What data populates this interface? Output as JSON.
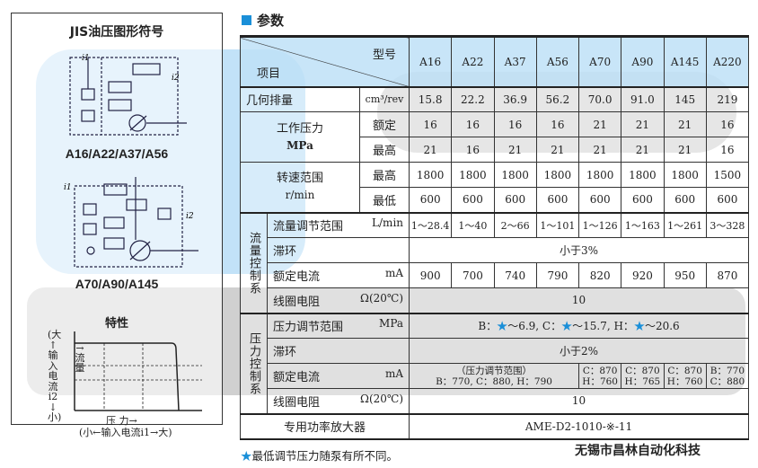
{
  "left_panel": {
    "title": "JIS油压图形符号",
    "diagram1_label": "A16/A22/A37/A56",
    "diagram2_label": "A70/A90/A145",
    "characteristics": {
      "title": "特性",
      "y_axis_label": [
        "(大",
        "↑",
        "输",
        "入",
        "电",
        "流",
        "i2",
        "↓",
        "小)"
      ],
      "flow_label": "↑流量",
      "x_axis_label": "压 力→",
      "x_axis_sub": "(小←输入电流i1→大)"
    },
    "i1": "i1",
    "i2": "i2"
  },
  "section_title": "参数",
  "table": {
    "header_model": "型号",
    "header_item": "项目",
    "models": [
      "A16",
      "A22",
      "A37",
      "A56",
      "A70",
      "A90",
      "A145",
      "A220"
    ],
    "displacement": {
      "label": "几何排量",
      "unit": "cm³/rev",
      "values": [
        "15.8",
        "22.2",
        "36.9",
        "56.2",
        "70.0",
        "91.0",
        "145",
        "219"
      ]
    },
    "working_pressure": {
      "label": "工作压力",
      "unit": "MPa",
      "rated": {
        "label": "额定",
        "values": [
          "16",
          "16",
          "16",
          "16",
          "21",
          "21",
          "21",
          "16"
        ]
      },
      "max": {
        "label": "最高",
        "values": [
          "21",
          "16",
          "21",
          "21",
          "21",
          "21",
          "21",
          "16"
        ]
      }
    },
    "speed_range": {
      "label": "转速范围",
      "unit": "r/min",
      "max": {
        "label": "最高",
        "values": [
          "1800",
          "1800",
          "1800",
          "1800",
          "1800",
          "1800",
          "1800",
          "1500"
        ]
      },
      "min": {
        "label": "最低",
        "values": [
          "600",
          "600",
          "600",
          "600",
          "600",
          "600",
          "600",
          "600"
        ]
      }
    },
    "flow_control": {
      "group": "流量控制系",
      "range": {
        "label": "流量调节范围",
        "unit": "L/min",
        "values": [
          "1～28.4",
          "1～40",
          "2～66",
          "1～101",
          "1～126",
          "1～163",
          "1～261",
          "3～328"
        ]
      },
      "hysteresis": {
        "label": "滞环",
        "value": "小于3%"
      },
      "current": {
        "label": "额定电流",
        "unit": "mA",
        "values": [
          "900",
          "700",
          "740",
          "790",
          "820",
          "920",
          "950",
          "870"
        ]
      },
      "resistance": {
        "label": "线圈电阻",
        "unit": "Ω(20℃)",
        "value": "10"
      }
    },
    "pressure_control": {
      "group": "压力控制系",
      "range": {
        "label": "压力调节范围",
        "unit": "MPa",
        "parts": [
          "B：",
          "～6.9, C：",
          "～15.7, H：",
          "～20.6"
        ],
        "star": "★"
      },
      "hysteresis": {
        "label": "滞环",
        "value": "小于2%"
      },
      "current": {
        "label": "额定电流",
        "unit": "mA",
        "shared_line1": "（压力调节范围）",
        "shared_line2": "B：770, C：880, H：790",
        "cells": [
          [
            "C：870",
            "H：760"
          ],
          [
            "C：870",
            "H：765"
          ],
          [
            "C：870",
            "H：760"
          ],
          [
            "B：770",
            "C：880"
          ]
        ]
      },
      "resistance": {
        "label": "线圈电阻",
        "unit": "Ω(20℃)",
        "value": "10"
      }
    },
    "amplifier": {
      "label": "专用功率放大器",
      "value": "AME-D2-1010-※-11"
    }
  },
  "note": {
    "star": "★",
    "text": "最低调节压力随泵有所不同。"
  },
  "company": "无锡市昌林自动化科技",
  "colors": {
    "accent": "#1a8fd8",
    "header_bg": "#bee1f7"
  }
}
